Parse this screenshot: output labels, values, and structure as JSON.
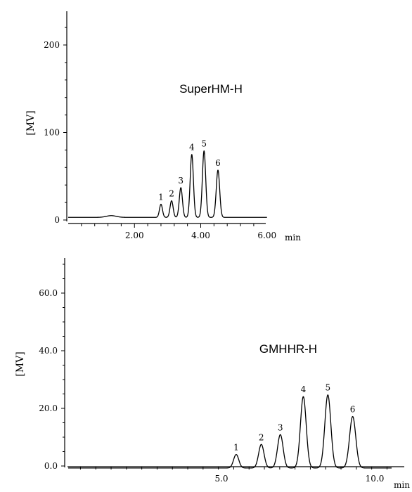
{
  "chart_data": [
    {
      "type": "line",
      "title": "SuperHM-H",
      "ylabel": "[MV]",
      "x_unit": "min",
      "xlim": [
        0,
        6.0
      ],
      "ylim": [
        0,
        240
      ],
      "xticks": [
        2.0,
        4.0,
        6.0
      ],
      "xtick_labels": [
        "2.00",
        "4.00",
        "6.00"
      ],
      "yticks": [
        0,
        100,
        200
      ],
      "ytick_labels": [
        "0",
        "100",
        "200"
      ],
      "baseline": 3,
      "peaks": [
        {
          "label": "1",
          "x": 2.8,
          "height": 18
        },
        {
          "label": "2",
          "x": 3.12,
          "height": 22
        },
        {
          "label": "3",
          "x": 3.4,
          "height": 37
        },
        {
          "label": "4",
          "x": 3.73,
          "height": 75
        },
        {
          "label": "5",
          "x": 4.1,
          "height": 79
        },
        {
          "label": "6",
          "x": 4.52,
          "height": 57
        }
      ]
    },
    {
      "type": "line",
      "title": "GMHHR-H",
      "ylabel": "[MV]",
      "x_unit": "min",
      "xlim": [
        0,
        10.5
      ],
      "ylim": [
        0,
        73
      ],
      "xticks": [
        5.0,
        10.0
      ],
      "xtick_labels": [
        "5.0",
        "10.0"
      ],
      "yticks": [
        0,
        20,
        40,
        60
      ],
      "ytick_labels": [
        "0.0",
        "20.0",
        "40.0",
        "60.0"
      ],
      "baseline": -0.7,
      "peaks": [
        {
          "label": "1",
          "x": 5.48,
          "height": 4
        },
        {
          "label": "2",
          "x": 6.3,
          "height": 7.5
        },
        {
          "label": "3",
          "x": 6.92,
          "height": 10.9
        },
        {
          "label": "4",
          "x": 7.67,
          "height": 24.1
        },
        {
          "label": "5",
          "x": 8.47,
          "height": 24.7
        },
        {
          "label": "6",
          "x": 9.28,
          "height": 17.2
        }
      ]
    }
  ]
}
